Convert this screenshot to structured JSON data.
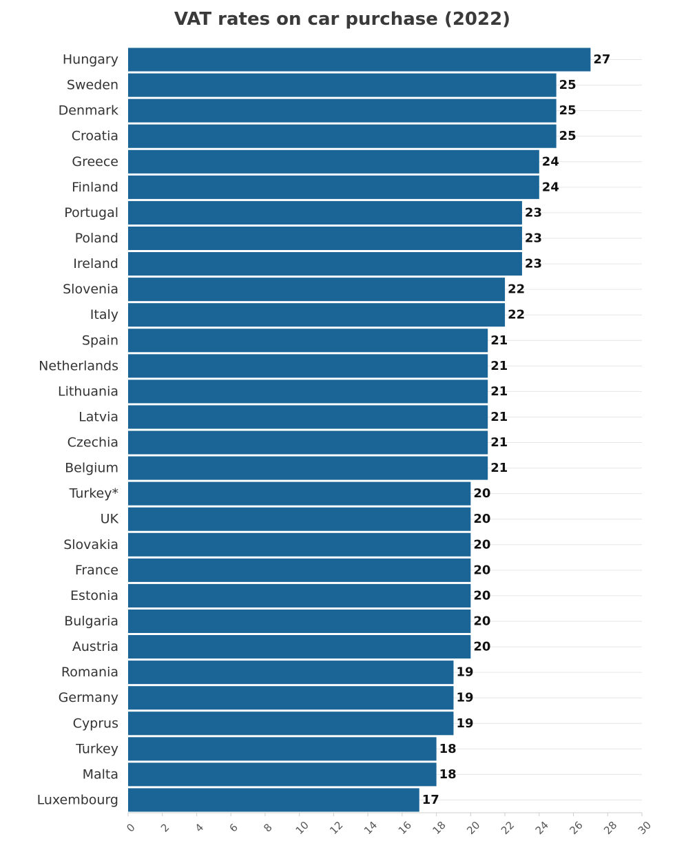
{
  "chart_data": {
    "type": "bar",
    "orientation": "horizontal",
    "title": "VAT rates on car purchase (2022)",
    "xlabel": "",
    "ylabel": "",
    "xlim": [
      0,
      30
    ],
    "x_ticks": [
      0,
      2,
      4,
      6,
      8,
      10,
      12,
      14,
      16,
      18,
      20,
      22,
      24,
      26,
      28,
      30
    ],
    "grid": true,
    "bar_color": "#1a6496",
    "categories": [
      "Hungary",
      "Sweden",
      "Denmark",
      "Croatia",
      "Greece",
      "Finland",
      "Portugal",
      "Poland",
      "Ireland",
      "Slovenia",
      "Italy",
      "Spain",
      "Netherlands",
      "Lithuania",
      "Latvia",
      "Czechia",
      "Belgium",
      "Turkey*",
      "UK",
      "Slovakia",
      "France",
      "Estonia",
      "Bulgaria",
      "Austria",
      "Romania",
      "Germany",
      "Cyprus",
      "Turkey",
      "Malta",
      "Luxembourg"
    ],
    "values": [
      27,
      25,
      25,
      25,
      24,
      24,
      23,
      23,
      23,
      22,
      22,
      21,
      21,
      21,
      21,
      21,
      21,
      20,
      20,
      20,
      20,
      20,
      20,
      20,
      19,
      19,
      19,
      18,
      18,
      17
    ]
  }
}
